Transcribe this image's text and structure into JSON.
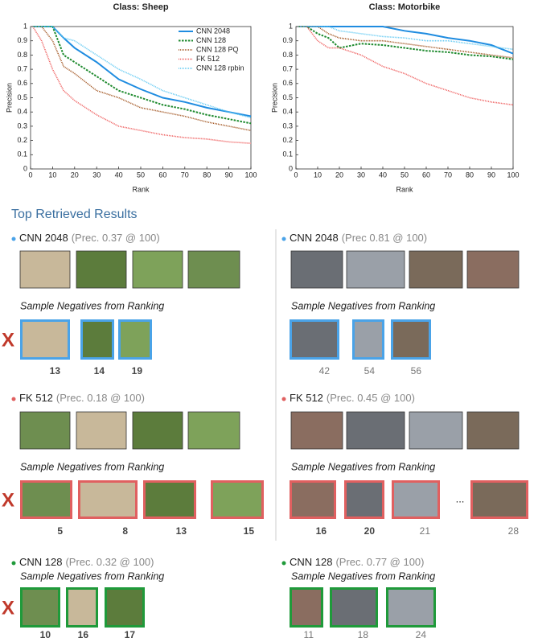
{
  "chart_data": [
    {
      "type": "line",
      "title": "Class: Sheep",
      "xlabel": "Rank",
      "ylabel": "Precision",
      "x": [
        1,
        5,
        10,
        15,
        20,
        30,
        40,
        50,
        60,
        70,
        80,
        90,
        100
      ],
      "series": [
        {
          "name": "CNN 2048",
          "color": "#1f8ce0",
          "style": "solid",
          "values": [
            1,
            1,
            1,
            0.92,
            0.85,
            0.75,
            0.63,
            0.56,
            0.5,
            0.47,
            0.43,
            0.4,
            0.37
          ]
        },
        {
          "name": "CNN 128",
          "color": "#1e8a2e",
          "style": "dashed",
          "values": [
            1,
            1,
            1,
            0.8,
            0.75,
            0.65,
            0.55,
            0.5,
            0.45,
            0.42,
            0.38,
            0.35,
            0.32
          ]
        },
        {
          "name": "CNN 128 PQ",
          "color": "#a0521d",
          "style": "dotted",
          "values": [
            1,
            1,
            0.9,
            0.72,
            0.67,
            0.55,
            0.5,
            0.43,
            0.4,
            0.37,
            0.33,
            0.3,
            0.27
          ]
        },
        {
          "name": "FK 512",
          "color": "#ee5a5a",
          "style": "dotted",
          "values": [
            1,
            0.9,
            0.7,
            0.55,
            0.48,
            0.38,
            0.3,
            0.27,
            0.24,
            0.22,
            0.21,
            0.19,
            0.18
          ]
        },
        {
          "name": "CNN 128 rpbin",
          "color": "#5ec8f2",
          "style": "dotted",
          "values": [
            1,
            1,
            1,
            0.92,
            0.9,
            0.8,
            0.7,
            0.63,
            0.55,
            0.5,
            0.45,
            0.4,
            0.36
          ]
        }
      ],
      "xlim": [
        0,
        100
      ],
      "xticks": [
        0,
        10,
        20,
        30,
        40,
        50,
        60,
        70,
        80,
        90,
        100
      ],
      "ylim": [
        0,
        1
      ],
      "yticks": [
        0,
        0.1,
        0.2,
        0.3,
        0.4,
        0.5,
        0.6,
        0.7,
        0.8,
        0.9,
        1
      ],
      "legend": "upper right"
    },
    {
      "type": "line",
      "title": "Class: Motorbike",
      "xlabel": "Rank",
      "ylabel": "Precision",
      "x": [
        1,
        5,
        10,
        15,
        20,
        30,
        40,
        50,
        60,
        70,
        80,
        90,
        100
      ],
      "series": [
        {
          "color": "#1f8ce0",
          "style": "solid",
          "values": [
            1,
            1,
            1,
            1,
            1,
            1,
            1,
            0.97,
            0.95,
            0.92,
            0.9,
            0.87,
            0.81
          ]
        },
        {
          "color": "#1e8a2e",
          "style": "dashed",
          "values": [
            1,
            1,
            0.95,
            0.92,
            0.85,
            0.88,
            0.87,
            0.85,
            0.83,
            0.82,
            0.8,
            0.79,
            0.77
          ]
        },
        {
          "color": "#a0521d",
          "style": "dotted",
          "values": [
            1,
            1,
            1,
            0.95,
            0.92,
            0.9,
            0.9,
            0.88,
            0.86,
            0.84,
            0.82,
            0.8,
            0.78
          ]
        },
        {
          "color": "#ee5a5a",
          "style": "dotted",
          "values": [
            1,
            1,
            0.9,
            0.85,
            0.85,
            0.8,
            0.72,
            0.67,
            0.6,
            0.55,
            0.5,
            0.47,
            0.45
          ]
        },
        {
          "color": "#5ec8f2",
          "style": "dotted",
          "values": [
            1,
            1,
            1,
            1,
            0.97,
            0.95,
            0.93,
            0.92,
            0.9,
            0.9,
            0.88,
            0.86,
            0.84
          ]
        }
      ],
      "xlim": [
        0,
        100
      ],
      "xticks": [
        0,
        10,
        20,
        30,
        40,
        50,
        60,
        70,
        80,
        90,
        100
      ],
      "ylim": [
        0,
        1
      ],
      "yticks": [
        0,
        0.1,
        0.2,
        0.3,
        0.4,
        0.5,
        0.6,
        0.7,
        0.8,
        0.9,
        1
      ]
    }
  ],
  "results": {
    "title": "Top Retrieved Results",
    "columns": [
      {
        "groups": [
          {
            "method": "CNN 2048",
            "precision": "(Prec. 0.37 @ 100)",
            "color": "#4aa3e8",
            "heading": "Sample Negatives from Ranking",
            "marker": "X",
            "negatives": [
              {
                "rank": 13,
                "bold": true
              },
              {
                "rank": 14,
                "bold": true
              },
              {
                "rank": 19,
                "bold": true
              }
            ]
          },
          {
            "method": "FK 512",
            "precision": "(Prec. 0.18 @ 100)",
            "color": "#e06060",
            "heading": "Sample Negatives from Ranking",
            "marker": "X",
            "negatives": [
              {
                "rank": 5,
                "bold": true
              },
              {
                "rank": 8,
                "bold": true
              },
              {
                "rank": 13,
                "bold": true
              },
              {
                "rank": 15,
                "bold": true
              }
            ]
          },
          {
            "method": "CNN 128",
            "precision": "(Prec. 0.32 @ 100)",
            "color": "#1f9a3a",
            "heading": "Sample Negatives from Ranking",
            "marker": "X",
            "negatives": [
              {
                "rank": 10,
                "bold": true
              },
              {
                "rank": 16,
                "bold": true
              },
              {
                "rank": 17,
                "bold": true
              }
            ]
          }
        ]
      },
      {
        "groups": [
          {
            "method": "CNN 2048",
            "precision": "(Prec 0.81 @ 100)",
            "color": "#4aa3e8",
            "heading": "Sample Negatives from Ranking",
            "negatives": [
              {
                "rank": 42,
                "bold": false
              },
              {
                "rank": 54,
                "bold": false
              },
              {
                "rank": 56,
                "bold": false
              }
            ]
          },
          {
            "method": "FK 512",
            "precision": "(Prec. 0.45 @ 100)",
            "color": "#e06060",
            "heading": "Sample Negatives from Ranking",
            "ellipsis": "...",
            "negatives": [
              {
                "rank": 16,
                "bold": true
              },
              {
                "rank": 20,
                "bold": true
              },
              {
                "rank": 21,
                "bold": false
              },
              {
                "rank": 28,
                "bold": false
              }
            ]
          },
          {
            "method": "CNN 128",
            "precision": "(Prec. 0.77 @ 100)",
            "color": "#1f9a3a",
            "heading": "Sample Negatives from Ranking",
            "negatives": [
              {
                "rank": 11,
                "bold": false
              },
              {
                "rank": 18,
                "bold": false
              },
              {
                "rank": 24,
                "bold": false
              }
            ]
          }
        ]
      }
    ]
  }
}
